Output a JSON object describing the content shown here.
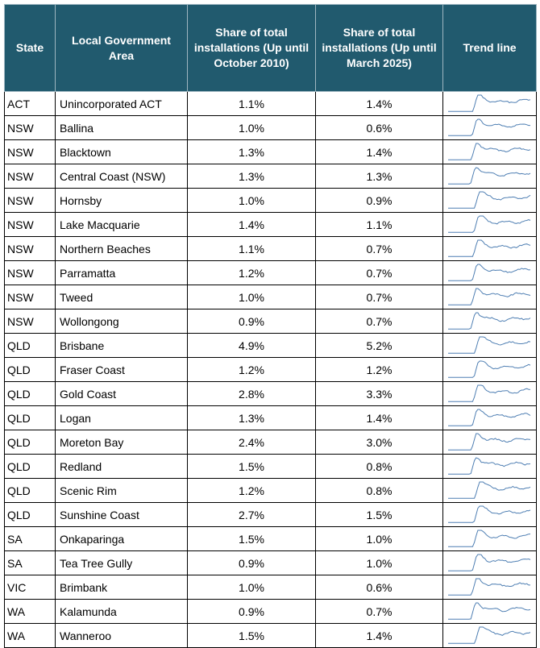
{
  "table": {
    "headers": [
      "State",
      "Local Government Area",
      "Share of total installations (Up until October 2010)",
      "Share of total installations (Up until March 2025)",
      "Trend line"
    ],
    "rows": [
      {
        "state": "ACT",
        "area": "Unincorporated ACT",
        "share_oct_2010": "1.1%",
        "share_mar_2025": "1.4%"
      },
      {
        "state": "NSW",
        "area": "Ballina",
        "share_oct_2010": "1.0%",
        "share_mar_2025": "0.6%"
      },
      {
        "state": "NSW",
        "area": "Blacktown",
        "share_oct_2010": "1.3%",
        "share_mar_2025": "1.4%"
      },
      {
        "state": "NSW",
        "area": "Central Coast (NSW)",
        "share_oct_2010": "1.3%",
        "share_mar_2025": "1.3%"
      },
      {
        "state": "NSW",
        "area": "Hornsby",
        "share_oct_2010": "1.0%",
        "share_mar_2025": "0.9%"
      },
      {
        "state": "NSW",
        "area": "Lake Macquarie",
        "share_oct_2010": "1.4%",
        "share_mar_2025": "1.1%"
      },
      {
        "state": "NSW",
        "area": "Northern Beaches",
        "share_oct_2010": "1.1%",
        "share_mar_2025": "0.7%"
      },
      {
        "state": "NSW",
        "area": "Parramatta",
        "share_oct_2010": "1.2%",
        "share_mar_2025": "0.7%"
      },
      {
        "state": "NSW",
        "area": "Tweed",
        "share_oct_2010": "1.0%",
        "share_mar_2025": "0.7%"
      },
      {
        "state": "NSW",
        "area": "Wollongong",
        "share_oct_2010": "0.9%",
        "share_mar_2025": "0.7%"
      },
      {
        "state": "QLD",
        "area": "Brisbane",
        "share_oct_2010": "4.9%",
        "share_mar_2025": "5.2%"
      },
      {
        "state": "QLD",
        "area": "Fraser Coast",
        "share_oct_2010": "1.2%",
        "share_mar_2025": "1.2%"
      },
      {
        "state": "QLD",
        "area": "Gold Coast",
        "share_oct_2010": "2.8%",
        "share_mar_2025": "3.3%"
      },
      {
        "state": "QLD",
        "area": "Logan",
        "share_oct_2010": "1.3%",
        "share_mar_2025": "1.4%"
      },
      {
        "state": "QLD",
        "area": "Moreton Bay",
        "share_oct_2010": "2.4%",
        "share_mar_2025": "3.0%"
      },
      {
        "state": "QLD",
        "area": "Redland",
        "share_oct_2010": "1.5%",
        "share_mar_2025": "0.8%"
      },
      {
        "state": "QLD",
        "area": "Scenic Rim",
        "share_oct_2010": "1.2%",
        "share_mar_2025": "0.8%"
      },
      {
        "state": "QLD",
        "area": "Sunshine Coast",
        "share_oct_2010": "2.7%",
        "share_mar_2025": "1.5%"
      },
      {
        "state": "SA",
        "area": "Onkaparinga",
        "share_oct_2010": "1.5%",
        "share_mar_2025": "1.0%"
      },
      {
        "state": "SA",
        "area": "Tea Tree Gully",
        "share_oct_2010": "0.9%",
        "share_mar_2025": "1.0%"
      },
      {
        "state": "VIC",
        "area": "Brimbank",
        "share_oct_2010": "1.0%",
        "share_mar_2025": "0.6%"
      },
      {
        "state": "WA",
        "area": "Kalamunda",
        "share_oct_2010": "0.9%",
        "share_mar_2025": "0.7%"
      },
      {
        "state": "WA",
        "area": "Wanneroo",
        "share_oct_2010": "1.5%",
        "share_mar_2025": "1.4%"
      }
    ]
  },
  "colors": {
    "header_background": "#215a6e",
    "header_text": "#ffffff",
    "trend_line": "#4f7fb3"
  }
}
